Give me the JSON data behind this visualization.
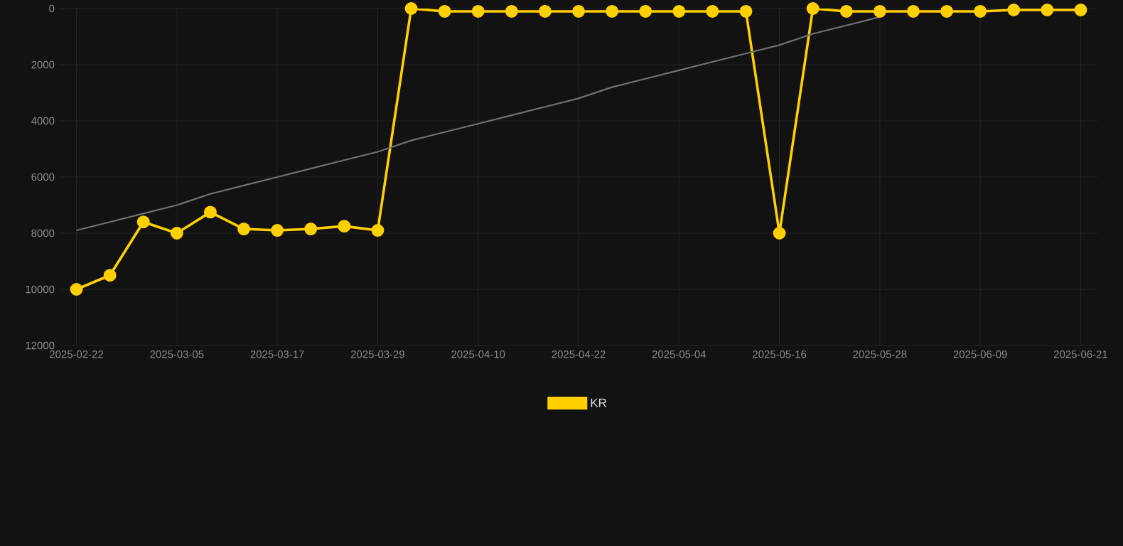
{
  "chart_data": {
    "type": "line",
    "categories": [
      "2025-02-22",
      null,
      null,
      "2025-03-05",
      null,
      null,
      "2025-03-17",
      null,
      null,
      "2025-03-29",
      null,
      null,
      "2025-04-10",
      null,
      null,
      "2025-04-22",
      null,
      null,
      "2025-05-04",
      null,
      null,
      "2025-05-16",
      null,
      null,
      "2025-05-28",
      null,
      null,
      "2025-06-09",
      null,
      null,
      "2025-06-21"
    ],
    "series": [
      {
        "name": "KR",
        "color": "#ffd000",
        "marker": "circle",
        "values": [
          10000,
          9500,
          7600,
          8000,
          7250,
          7850,
          7900,
          7850,
          7750,
          7900,
          0,
          100,
          100,
          100,
          100,
          100,
          100,
          100,
          100,
          100,
          100,
          8000,
          0,
          100,
          100,
          100,
          100,
          100,
          50,
          50,
          50
        ]
      },
      {
        "color": "#707070",
        "marker": "none",
        "values": [
          7900,
          7600,
          7300,
          7000,
          6600,
          6300,
          6000,
          5700,
          5400,
          5100,
          4700,
          4400,
          4100,
          3800,
          3500,
          3200,
          2800,
          2500,
          2200,
          1900,
          1600,
          1300,
          900,
          600,
          300,
          null,
          null,
          null,
          null,
          null,
          null
        ]
      }
    ],
    "ylim": [
      12000,
      0
    ],
    "yticks": [
      0,
      2000,
      4000,
      6000,
      8000,
      10000,
      12000
    ],
    "grid": true,
    "legend": "bottom",
    "line_style": "solid"
  }
}
